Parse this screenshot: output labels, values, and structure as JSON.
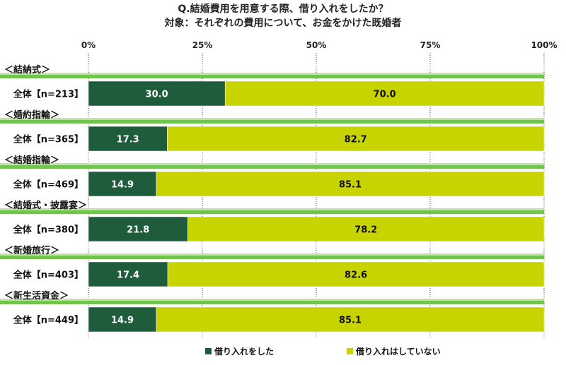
{
  "chart_data": {
    "type": "bar",
    "orientation": "horizontal",
    "stacked": true,
    "title": "Q.結婚費用を用意する際、借り入れをしたか？",
    "subtitle": "対象：それぞれの費用について、お金をかけた既婚者",
    "xlim": [
      0,
      100
    ],
    "x_ticks": [
      "0%",
      "25%",
      "50%",
      "75%",
      "100%"
    ],
    "grid": true,
    "legend_position": "bottom",
    "groups": [
      {
        "section": "＜結納式＞",
        "label": "全体【n=213】"
      },
      {
        "section": "＜婚約指輪＞",
        "label": "全体【n=365】"
      },
      {
        "section": "＜結婚指輪＞",
        "label": "全体【n=469】"
      },
      {
        "section": "＜結婚式・披露宴＞",
        "label": "全体【n=380】"
      },
      {
        "section": "＜新婚旅行＞",
        "label": "全体【n=403】"
      },
      {
        "section": "＜新生活資金＞",
        "label": "全体【n=449】"
      }
    ],
    "series": [
      {
        "name": "借り入れをした",
        "color": "#1e5c3c",
        "values": [
          30.0,
          17.3,
          14.9,
          21.8,
          17.4,
          14.9
        ]
      },
      {
        "name": "借り入れはしていない",
        "color": "#c8d400",
        "values": [
          70.0,
          82.7,
          85.1,
          78.2,
          82.6,
          85.1
        ]
      }
    ],
    "section_band_color": "#72c34f"
  }
}
